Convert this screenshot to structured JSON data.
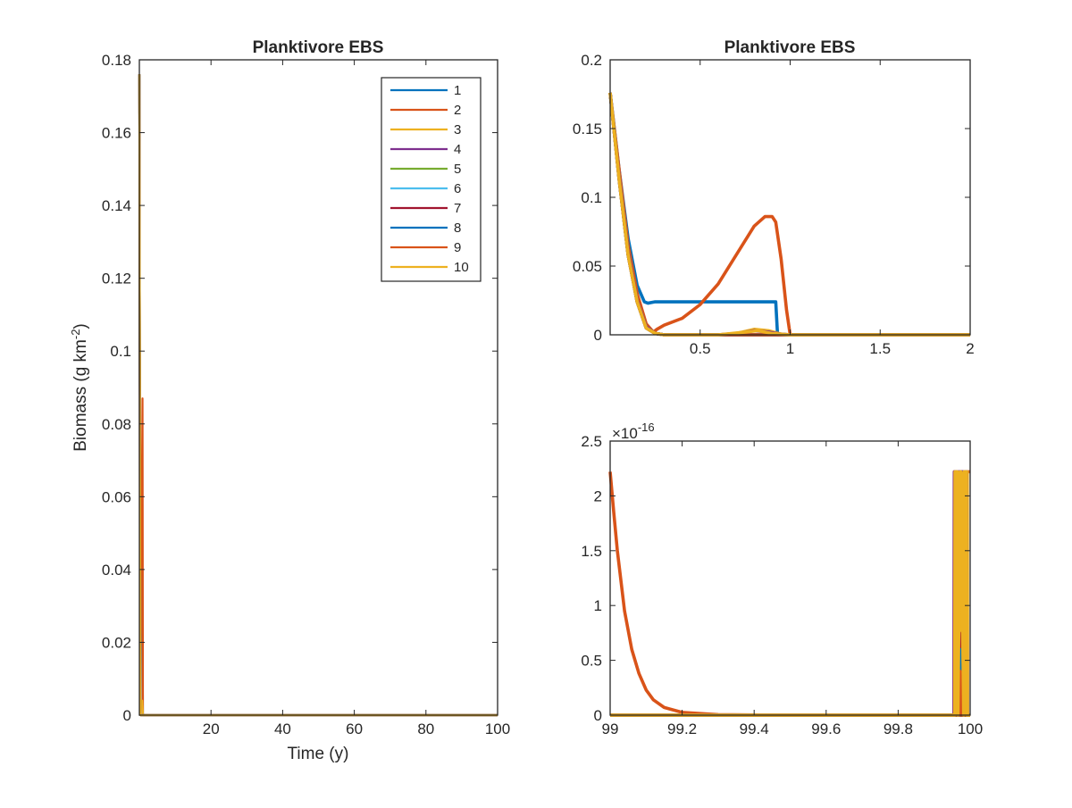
{
  "colors": {
    "series": [
      "#0072BD",
      "#D95319",
      "#EDB120",
      "#7E2F8E",
      "#77AC30",
      "#4DBEEE",
      "#A2142F",
      "#0072BD",
      "#D95319",
      "#EDB120"
    ],
    "axes": "#262626"
  },
  "chart_data": [
    {
      "id": "left",
      "type": "line",
      "title": "Planktivore EBS",
      "xlabel": "Time (y)",
      "ylabel": "Biomass (g km",
      "ylabel_exp": "-2",
      "ylabel_close": ")",
      "xlim": [
        0,
        100
      ],
      "ylim": [
        0,
        0.18
      ],
      "xticks": [
        20,
        40,
        60,
        80,
        100
      ],
      "yticks": [
        0,
        0.02,
        0.04,
        0.06,
        0.08,
        0.1,
        0.12,
        0.14,
        0.16,
        0.18
      ],
      "xtick_labels": [
        "20",
        "40",
        "60",
        "80",
        "100"
      ],
      "ytick_labels": [
        "0",
        "0.02",
        "0.04",
        "0.06",
        "0.08",
        "0.1",
        "0.12",
        "0.14",
        "0.16",
        "0.18"
      ],
      "legend": {
        "position": "top-right",
        "entries": [
          "1",
          "2",
          "3",
          "4",
          "5",
          "6",
          "7",
          "8",
          "9",
          "10"
        ]
      },
      "series": [
        {
          "name": "1",
          "x": [
            0,
            0.2,
            0.5,
            0.9,
            1.0,
            100
          ],
          "y": [
            0.176,
            0.024,
            0.024,
            0.024,
            0,
            0
          ]
        },
        {
          "name": "2",
          "x": [
            0,
            0.2,
            0.5,
            0.88,
            1.0,
            100
          ],
          "y": [
            0.176,
            0.006,
            0.03,
            0.087,
            0,
            0
          ]
        },
        {
          "name": "3",
          "x": [
            0,
            0.3,
            0.8,
            1.0,
            100
          ],
          "y": [
            0.176,
            0.002,
            0.004,
            0,
            0
          ]
        },
        {
          "name": "4",
          "x": [
            0,
            0.3,
            1.0,
            100
          ],
          "y": [
            0.176,
            0,
            0,
            0
          ]
        },
        {
          "name": "5",
          "x": [
            0,
            0.3,
            1.0,
            100
          ],
          "y": [
            0.176,
            0,
            0,
            0
          ]
        },
        {
          "name": "6",
          "x": [
            0,
            0.3,
            1.0,
            100
          ],
          "y": [
            0.176,
            0,
            0,
            0
          ]
        },
        {
          "name": "7",
          "x": [
            0,
            0.3,
            1.0,
            100
          ],
          "y": [
            0.176,
            0,
            0,
            0
          ]
        },
        {
          "name": "8",
          "x": [
            0,
            0.3,
            1.0,
            100
          ],
          "y": [
            0.176,
            0,
            0,
            0
          ]
        },
        {
          "name": "9",
          "x": [
            0,
            0.3,
            1.0,
            100
          ],
          "y": [
            0.176,
            0,
            0,
            0
          ]
        },
        {
          "name": "10",
          "x": [
            0,
            0.3,
            1.0,
            100
          ],
          "y": [
            0.176,
            0,
            0,
            0
          ]
        }
      ]
    },
    {
      "id": "top-right",
      "type": "line",
      "title": "Planktivore EBS",
      "xlim": [
        0,
        2
      ],
      "ylim": [
        0,
        0.2
      ],
      "xticks": [
        0.5,
        1,
        1.5,
        2
      ],
      "yticks": [
        0,
        0.05,
        0.1,
        0.15,
        0.2
      ],
      "xtick_labels": [
        "0.5",
        "1",
        "1.5",
        "2"
      ],
      "ytick_labels": [
        "0",
        "0.05",
        "0.1",
        "0.15",
        "0.2"
      ],
      "series": [
        {
          "name": "1",
          "x": [
            0,
            0.05,
            0.1,
            0.15,
            0.19,
            0.21,
            0.25,
            0.5,
            0.7,
            0.92,
            0.93,
            2
          ],
          "y": [
            0.176,
            0.12,
            0.07,
            0.036,
            0.024,
            0.023,
            0.024,
            0.024,
            0.024,
            0.024,
            0,
            0
          ]
        },
        {
          "name": "2",
          "x": [
            0,
            0.05,
            0.1,
            0.15,
            0.2,
            0.24,
            0.26,
            0.3,
            0.4,
            0.5,
            0.6,
            0.7,
            0.8,
            0.86,
            0.9,
            0.92,
            0.95,
            0.98,
            1.0,
            1.1,
            2
          ],
          "y": [
            0.176,
            0.12,
            0.065,
            0.03,
            0.008,
            0.002,
            0.004,
            0.007,
            0.012,
            0.022,
            0.037,
            0.058,
            0.079,
            0.086,
            0.086,
            0.082,
            0.055,
            0.018,
            0,
            0,
            2e-18
          ]
        },
        {
          "name": "3",
          "x": [
            0,
            0.05,
            0.1,
            0.15,
            0.2,
            0.25,
            0.3,
            0.6,
            0.7,
            0.8,
            0.88,
            0.95,
            1.0,
            2
          ],
          "y": [
            0.176,
            0.115,
            0.06,
            0.025,
            0.006,
            0.001,
            0,
            0,
            0.001,
            0.004,
            0.003,
            0.0005,
            0,
            0
          ]
        },
        {
          "name": "4",
          "x": [
            0,
            0.05,
            0.1,
            0.15,
            0.2,
            0.25,
            0.3,
            0.6,
            0.7,
            0.8,
            0.88,
            0.95,
            1.0,
            2
          ],
          "y": [
            0.176,
            0.115,
            0.06,
            0.025,
            0.006,
            0.001,
            0,
            0,
            0.001,
            0.003,
            0.002,
            0.0005,
            0,
            0
          ]
        },
        {
          "name": "5",
          "x": [
            0,
            0.05,
            0.1,
            0.15,
            0.2,
            0.25,
            0.3,
            1.0,
            2
          ],
          "y": [
            0.176,
            0.113,
            0.058,
            0.024,
            0.005,
            0.001,
            0,
            0,
            0
          ]
        },
        {
          "name": "6",
          "x": [
            0,
            0.05,
            0.1,
            0.15,
            0.2,
            0.25,
            0.3,
            1.0,
            2
          ],
          "y": [
            0.176,
            0.113,
            0.058,
            0.024,
            0.005,
            0.001,
            0,
            0,
            0
          ]
        },
        {
          "name": "7",
          "x": [
            0,
            0.05,
            0.1,
            0.15,
            0.2,
            0.25,
            0.3,
            1.0,
            2
          ],
          "y": [
            0.176,
            0.113,
            0.058,
            0.024,
            0.005,
            0.001,
            0,
            0,
            0
          ]
        },
        {
          "name": "8",
          "x": [
            0,
            0.05,
            0.1,
            0.15,
            0.2,
            0.25,
            0.3,
            1.0,
            2
          ],
          "y": [
            0.176,
            0.113,
            0.058,
            0.024,
            0.005,
            0.001,
            0,
            0,
            0
          ]
        },
        {
          "name": "9",
          "x": [
            0,
            0.05,
            0.1,
            0.15,
            0.2,
            0.25,
            0.3,
            1.0,
            2
          ],
          "y": [
            0.176,
            0.113,
            0.058,
            0.024,
            0.005,
            0.001,
            0,
            0,
            0
          ]
        },
        {
          "name": "10",
          "x": [
            0,
            0.05,
            0.1,
            0.15,
            0.2,
            0.25,
            0.3,
            0.6,
            0.75,
            0.82,
            0.9,
            1.0,
            2
          ],
          "y": [
            0.176,
            0.113,
            0.058,
            0.024,
            0.005,
            0.001,
            0,
            0,
            0.002,
            0.003,
            0.001,
            0,
            0
          ]
        }
      ]
    },
    {
      "id": "bottom-right",
      "type": "line",
      "exponent_label": "×10",
      "exponent_power": "-16",
      "xlim": [
        99,
        100
      ],
      "ylim": [
        0,
        2.5
      ],
      "y_scale_note": "values in units of 1e-16",
      "xticks": [
        99,
        99.2,
        99.4,
        99.6,
        99.8,
        100
      ],
      "yticks": [
        0,
        0.5,
        1,
        1.5,
        2,
        2.5
      ],
      "xtick_labels": [
        "99",
        "99.2",
        "99.4",
        "99.6",
        "99.8",
        "100"
      ],
      "ytick_labels": [
        "0",
        "0.5",
        "1",
        "1.5",
        "2",
        "2.5"
      ],
      "series": [
        {
          "name": "1",
          "x": [
            99,
            99.96,
            99.965,
            99.97,
            99.975,
            99.98,
            100
          ],
          "y": [
            0,
            0,
            0.05,
            0,
            0.05,
            0,
            0
          ]
        },
        {
          "name": "2",
          "x": [
            99,
            99.01,
            99.02,
            99.04,
            99.06,
            99.08,
            99.1,
            99.12,
            99.15,
            99.2,
            99.3,
            99.5,
            99.96,
            99.97,
            99.98,
            99.99,
            99.995,
            100
          ],
          "y": [
            2.22,
            1.85,
            1.5,
            0.95,
            0.6,
            0.38,
            0.23,
            0.14,
            0.07,
            0.025,
            0.005,
            0,
            0,
            0.88,
            0,
            2.22,
            2.22,
            2.22
          ]
        },
        {
          "name": "3",
          "x": [
            99,
            99.955,
            99.956,
            99.962,
            99.963,
            99.97,
            99.971,
            99.978,
            99.979,
            99.985,
            99.986,
            99.992,
            99.993,
            100
          ],
          "y": [
            0,
            0,
            2.22,
            2.22,
            0,
            0,
            2.22,
            2.22,
            0,
            0,
            2.22,
            2.22,
            0,
            0
          ]
        },
        {
          "name": "4",
          "x": [
            99,
            99.955,
            99.956,
            99.99,
            99.991,
            100
          ],
          "y": [
            0,
            0,
            2.22,
            2.22,
            0,
            0
          ]
        },
        {
          "name": "5",
          "x": [
            99,
            99.965,
            99.968,
            99.971,
            100
          ],
          "y": [
            0,
            0,
            0.3,
            0,
            0
          ]
        },
        {
          "name": "6",
          "x": [
            99,
            99.966,
            99.969,
            99.972,
            100
          ],
          "y": [
            0,
            0,
            0.52,
            0,
            0
          ]
        },
        {
          "name": "7",
          "x": [
            99,
            99.967,
            99.97,
            99.973,
            100
          ],
          "y": [
            0,
            0,
            0.75,
            0,
            0
          ]
        },
        {
          "name": "8",
          "x": [
            99,
            99.968,
            99.971,
            99.974,
            100
          ],
          "y": [
            0,
            0,
            0.6,
            0,
            0
          ]
        },
        {
          "name": "9",
          "x": [
            99,
            99.969,
            99.972,
            99.975,
            100
          ],
          "y": [
            0,
            0,
            0.4,
            0,
            0
          ]
        },
        {
          "name": "10",
          "x": [
            99,
            99.957,
            99.958,
            99.965,
            99.966,
            99.973,
            99.974,
            99.982,
            99.983,
            99.99,
            99.991,
            100
          ],
          "y": [
            0,
            0,
            2.22,
            2.22,
            0,
            2.22,
            2.22,
            0,
            2.22,
            2.22,
            0,
            0
          ]
        }
      ]
    }
  ]
}
